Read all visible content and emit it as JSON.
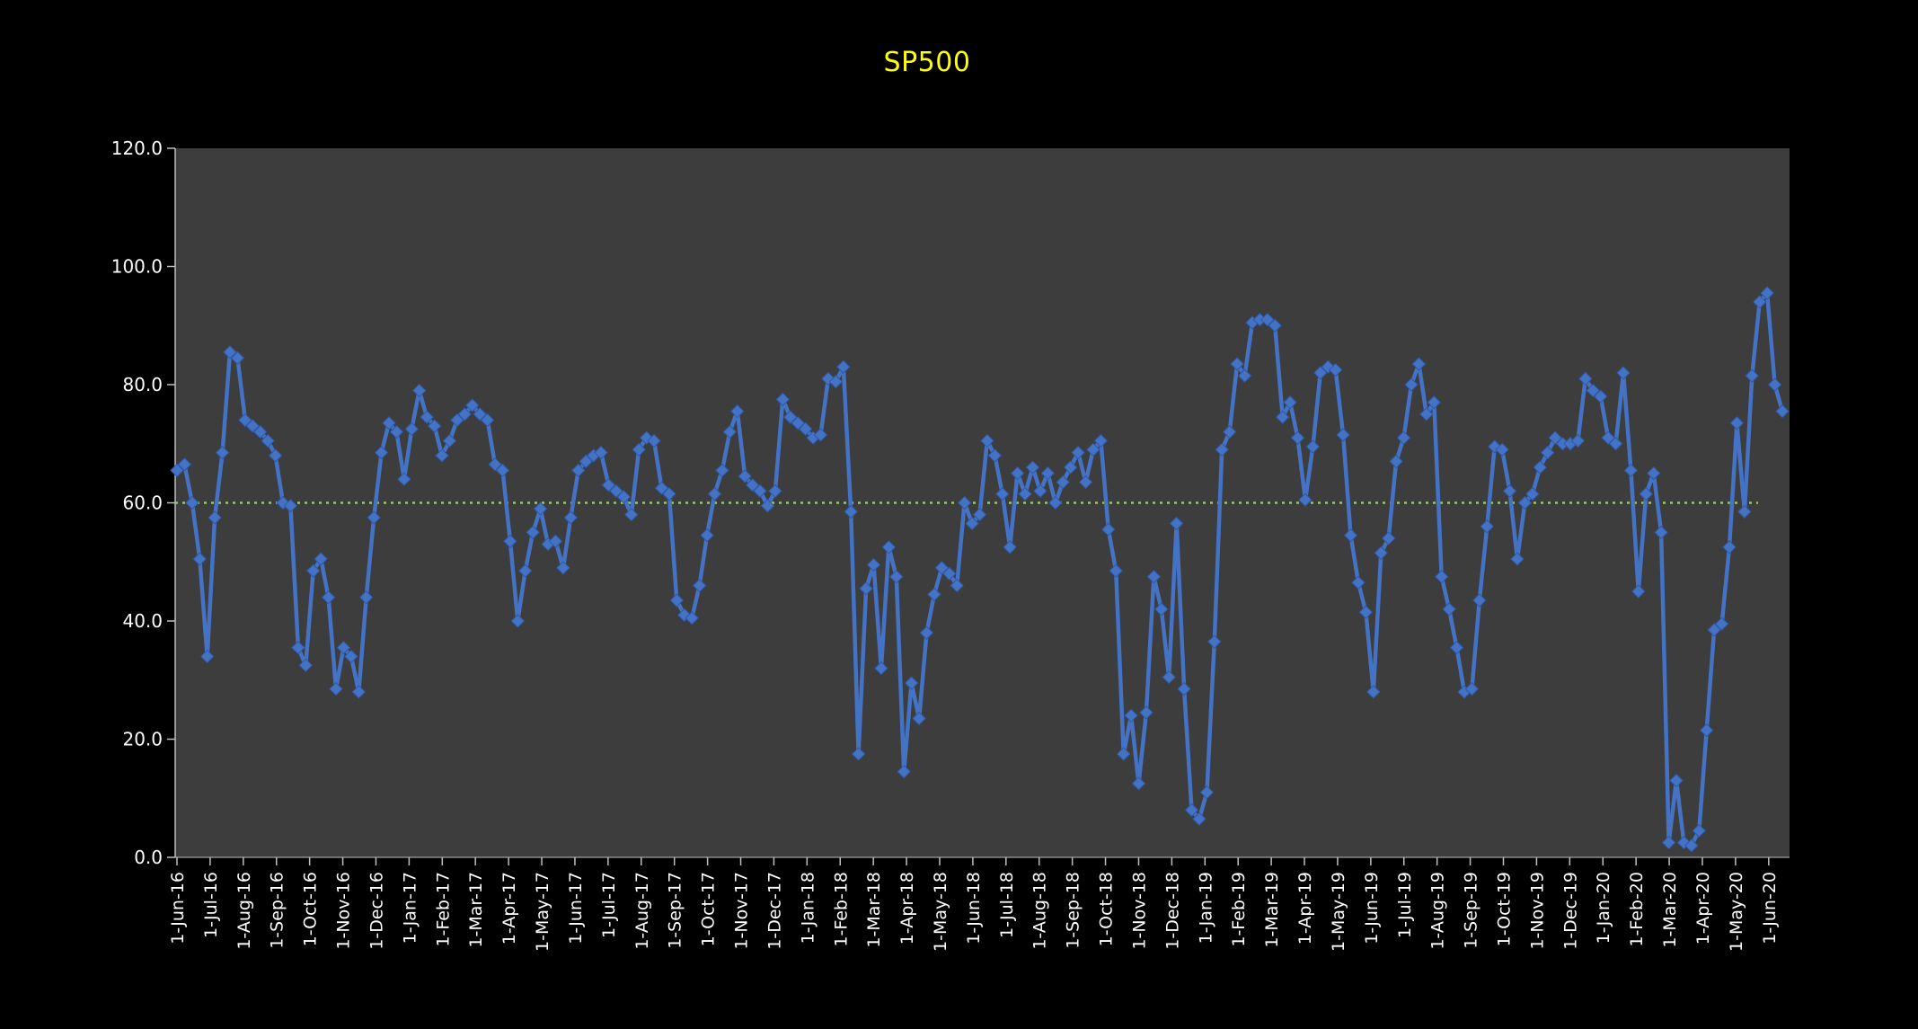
{
  "title": "SP500",
  "title_color": "#FFFF00",
  "chart_data": {
    "type": "line",
    "title": "SP500",
    "xlabel": "",
    "ylabel": "",
    "ylim": [
      0,
      120
    ],
    "grid": false,
    "legend": "none",
    "page_bg": "#000000",
    "plot_bg": "#3d3d3d",
    "axis_color": "#c0c0c0",
    "tick_label_color": "#ffffff",
    "line_color": "#4472C4",
    "marker": "diamond",
    "reference_line": {
      "value": 60,
      "color": "#92D050",
      "style": "dotted"
    },
    "y_ticks": [
      {
        "value": 0,
        "label": "0.0"
      },
      {
        "value": 20,
        "label": "20.0"
      },
      {
        "value": 40,
        "label": "40.0"
      },
      {
        "value": 60,
        "label": "60.0"
      },
      {
        "value": 80,
        "label": "80.0"
      },
      {
        "value": 100,
        "label": "100.0"
      },
      {
        "value": 120,
        "label": "120.0"
      }
    ],
    "x_tick_labels": [
      "1-Jun-16",
      "1-Jul-16",
      "1-Aug-16",
      "1-Sep-16",
      "1-Oct-16",
      "1-Nov-16",
      "1-Dec-16",
      "1-Jan-17",
      "1-Feb-17",
      "1-Mar-17",
      "1-Apr-17",
      "1-May-17",
      "1-Jun-17",
      "1-Jul-17",
      "1-Aug-17",
      "1-Sep-17",
      "1-Oct-17",
      "1-Nov-17",
      "1-Dec-17",
      "1-Jan-18",
      "1-Feb-18",
      "1-Mar-18",
      "1-Apr-18",
      "1-May-18",
      "1-Jun-18",
      "1-Jul-18",
      "1-Aug-18",
      "1-Sep-18",
      "1-Oct-18",
      "1-Nov-18",
      "1-Dec-18",
      "1-Jan-19",
      "1-Feb-19",
      "1-Mar-19",
      "1-Apr-19",
      "1-May-19",
      "1-Jun-19",
      "1-Jul-19",
      "1-Aug-19",
      "1-Sep-19",
      "1-Oct-19",
      "1-Nov-19",
      "1-Dec-19",
      "1-Jan-20",
      "1-Feb-20",
      "1-Mar-20",
      "1-Apr-20",
      "1-May-20",
      "1-Jun-20"
    ],
    "series": [
      {
        "name": "SP500",
        "frequency": "weekly",
        "values": [
          65.5,
          66.5,
          60,
          50.5,
          34,
          57.5,
          68.5,
          85.5,
          84.5,
          74,
          73,
          72,
          70.5,
          68,
          60,
          59.5,
          35.5,
          32.5,
          48.5,
          50.5,
          44,
          28.5,
          35.5,
          34,
          28,
          44,
          57.5,
          68.5,
          73.5,
          72,
          64,
          72.5,
          79,
          74.5,
          73,
          68,
          70.5,
          74,
          75,
          76.5,
          75,
          74,
          66.5,
          65.5,
          53.5,
          40,
          48.5,
          55,
          59,
          53,
          53.5,
          49,
          57.5,
          65.5,
          67,
          68,
          68.5,
          63,
          62,
          61,
          58,
          69,
          71,
          70.5,
          62.5,
          61.5,
          43.5,
          41,
          40.5,
          46,
          54.5,
          61.5,
          65.5,
          72,
          75.5,
          64.5,
          63,
          62,
          59.5,
          62,
          77.5,
          74.5,
          73.5,
          72.5,
          71,
          71.5,
          81,
          80.5,
          83,
          58.5,
          17.5,
          45.5,
          49.5,
          32,
          52.5,
          47.5,
          14.5,
          29.5,
          23.5,
          38,
          44.5,
          49,
          48,
          46,
          60,
          56.5,
          58,
          70.5,
          68,
          61.5,
          52.5,
          65,
          61.5,
          66,
          62,
          65,
          60,
          63.5,
          66,
          68.5,
          63.5,
          69,
          70.5,
          55.5,
          48.5,
          17.5,
          24,
          12.5,
          24.5,
          47.5,
          42,
          30.5,
          56.5,
          28.5,
          8,
          6.5,
          11,
          36.5,
          69,
          72,
          83.5,
          81.5,
          90.5,
          91,
          91,
          90,
          74.5,
          77,
          71,
          60.5,
          69.5,
          82,
          83,
          82.5,
          71.5,
          54.5,
          46.5,
          41.5,
          28,
          51.5,
          54,
          67,
          71,
          80,
          83.5,
          75,
          77,
          47.5,
          42,
          35.5,
          28,
          28.5,
          43.5,
          56,
          69.5,
          69,
          62,
          50.5,
          60,
          61.5,
          66,
          68.5,
          71,
          70,
          70,
          70.5,
          81,
          79,
          78,
          71,
          70,
          82,
          65.5,
          45,
          61.5,
          65,
          55,
          2.5,
          13,
          2.5,
          2,
          4.5,
          21.5,
          38.5,
          39.5,
          52.5,
          73.5,
          58.5,
          81.5,
          94,
          95.5,
          80,
          75.5
        ]
      }
    ]
  }
}
